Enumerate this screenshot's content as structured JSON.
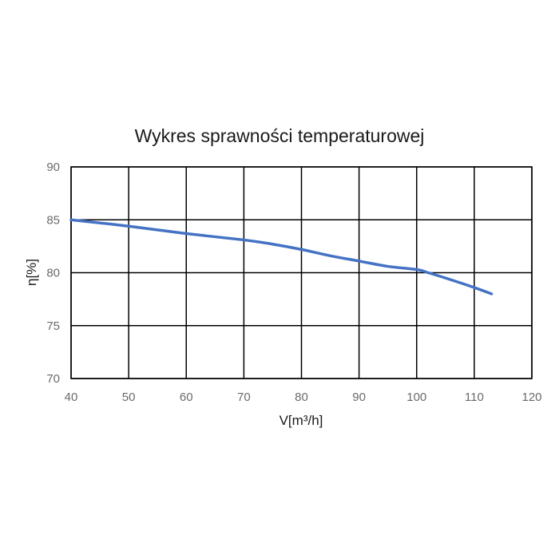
{
  "chart_data": {
    "type": "line",
    "title": "Wykres sprawności temperaturowej",
    "xlabel": "V[m³/h]",
    "ylabel": "η[%]",
    "xlim": [
      40,
      120
    ],
    "ylim": [
      70,
      90
    ],
    "xticks": [
      40,
      50,
      60,
      70,
      80,
      90,
      100,
      110,
      120
    ],
    "yticks": [
      70,
      75,
      80,
      85,
      90
    ],
    "grid": true,
    "legend": "none",
    "series": [
      {
        "color": "#4472C4",
        "x": [
          40,
          50,
          60,
          70,
          75,
          80,
          85,
          90,
          95,
          100,
          102,
          105,
          110,
          113
        ],
        "y": [
          85.0,
          84.4,
          83.7,
          83.1,
          82.7,
          82.2,
          81.6,
          81.1,
          80.6,
          80.3,
          80.0,
          79.5,
          78.6,
          78.0
        ]
      }
    ]
  }
}
